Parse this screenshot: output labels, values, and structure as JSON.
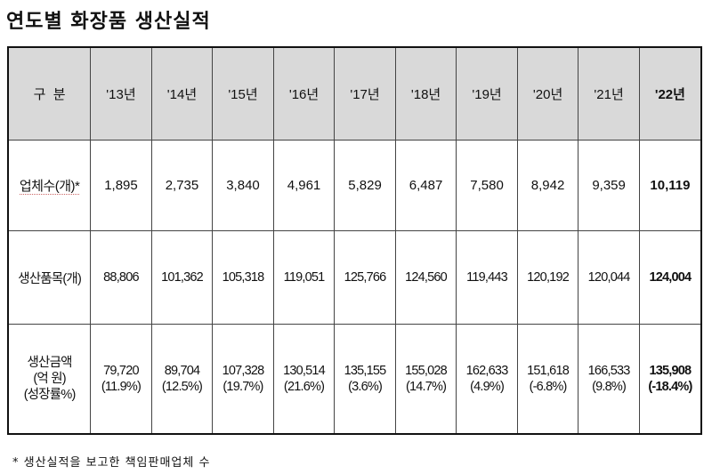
{
  "title": "연도별 화장품 생산실적",
  "table": {
    "corner": "구  분",
    "years": [
      "'13년",
      "'14년",
      "'15년",
      "'16년",
      "'17년",
      "'18년",
      "'19년",
      "'20년",
      "'21년",
      "'22년"
    ],
    "rows": [
      {
        "label": "업체수(개)*",
        "values": [
          "1,895",
          "2,735",
          "3,840",
          "4,961",
          "5,829",
          "6,487",
          "7,580",
          "8,942",
          "9,359",
          "10,119"
        ]
      },
      {
        "label": "생산품목(개)",
        "values": [
          "88,806",
          "101,362",
          "105,318",
          "119,051",
          "125,766",
          "124,560",
          "119,443",
          "120,192",
          "120,044",
          "124,004"
        ]
      },
      {
        "label_lines": [
          "생산금액",
          "(억 원)",
          "(성장률%)"
        ],
        "values": [
          [
            "79,720",
            "(11.9%)"
          ],
          [
            "89,704",
            "(12.5%)"
          ],
          [
            "107,328",
            "(19.7%)"
          ],
          [
            "130,514",
            "(21.6%)"
          ],
          [
            "135,155",
            "(3.6%)"
          ],
          [
            "155,028",
            "(14.7%)"
          ],
          [
            "162,633",
            "(4.9%)"
          ],
          [
            "151,618",
            "(-6.8%)"
          ],
          [
            "166,533",
            "(9.8%)"
          ],
          [
            "135,908",
            "(-18.4%)"
          ]
        ]
      }
    ]
  },
  "footnote": "* 생산실적을 보고한 책임판매업체 수"
}
